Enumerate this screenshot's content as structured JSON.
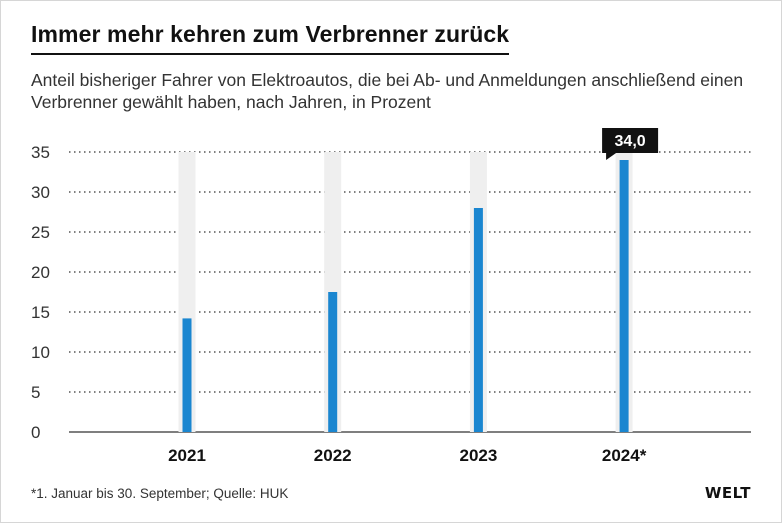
{
  "title": "Immer mehr kehren zum Verbrenner zurück",
  "subtitle": "Anteil bisheriger Fahrer von Elektroautos, die bei Ab- und Anmeldungen anschließend einen Verbrenner gewählt haben, nach Jahren, in Prozent",
  "footnote": "*1. Januar bis 30. September; Quelle: HUK",
  "logo": "WELT",
  "colors": {
    "bar": "#1a86d0",
    "bar_background": "#efefef",
    "label_bg": "#111111",
    "label_text": "#ffffff",
    "grid": "#555555"
  },
  "chart_data": {
    "type": "bar",
    "categories": [
      "2021",
      "2022",
      "2023",
      "2024*"
    ],
    "values": [
      14.2,
      17.5,
      28.0,
      34.0
    ],
    "highlight_label": {
      "category": "2024*",
      "text": "34,0"
    },
    "ylim": [
      0,
      35
    ],
    "yticks": [
      "0",
      "5",
      "10",
      "15",
      "20",
      "25",
      "30",
      "35"
    ],
    "grid": true,
    "xlabel": "",
    "ylabel": ""
  }
}
